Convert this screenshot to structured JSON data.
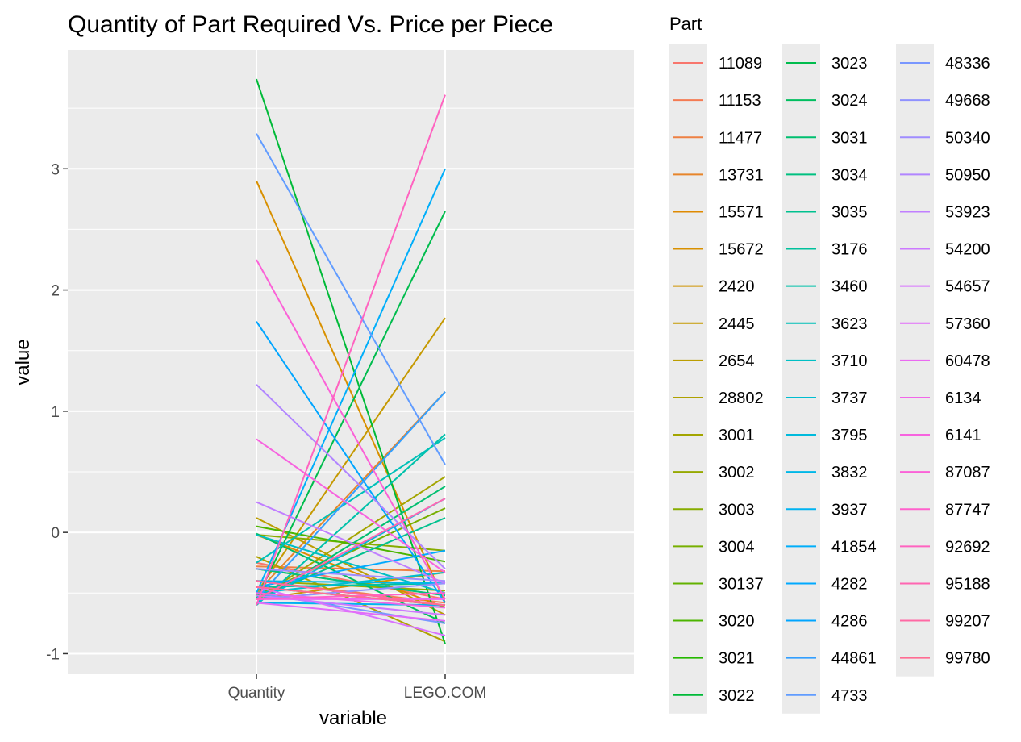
{
  "chart_data": {
    "type": "line",
    "title": "Quantity of Part Required Vs. Price per Piece",
    "xlabel": "variable",
    "ylabel": "value",
    "categories": [
      "Quantity",
      "LEGO.COM"
    ],
    "ylim": [
      -1.17,
      3.98
    ],
    "yticks": [
      -1,
      0,
      1,
      2,
      3
    ],
    "grid": true,
    "legend": {
      "title": "Part",
      "placement": "right"
    },
    "series": [
      {
        "name": "11089",
        "values": [
          -0.25,
          -0.55
        ],
        "color": "#F8766D"
      },
      {
        "name": "11153",
        "values": [
          -0.4,
          -0.58
        ],
        "color": "#F47B53"
      },
      {
        "name": "11477",
        "values": [
          -0.28,
          -0.32
        ],
        "color": "#EE8043"
      },
      {
        "name": "13731",
        "values": [
          -0.5,
          1.16
        ],
        "color": "#E7852A"
      },
      {
        "name": "15571",
        "values": [
          -0.02,
          -0.62
        ],
        "color": "#DF8A00"
      },
      {
        "name": "15672",
        "values": [
          2.9,
          -0.58
        ],
        "color": "#D89000"
      },
      {
        "name": "2420",
        "values": [
          -0.55,
          -0.33
        ],
        "color": "#CF9400"
      },
      {
        "name": "2445",
        "values": [
          -0.5,
          1.77
        ],
        "color": "#C59900"
      },
      {
        "name": "2654",
        "values": [
          0.12,
          -0.68
        ],
        "color": "#BB9D00"
      },
      {
        "name": "28802",
        "values": [
          -0.2,
          -0.9
        ],
        "color": "#AFA100"
      },
      {
        "name": "3001",
        "values": [
          -0.55,
          0.46
        ],
        "color": "#A3A500"
      },
      {
        "name": "3002",
        "values": [
          -0.4,
          -0.48
        ],
        "color": "#96A900"
      },
      {
        "name": "3003",
        "values": [
          -0.02,
          -0.15
        ],
        "color": "#87AC00"
      },
      {
        "name": "3004",
        "values": [
          -0.52,
          0.2
        ],
        "color": "#77AF00"
      },
      {
        "name": "30137",
        "values": [
          -0.3,
          -0.52
        ],
        "color": "#63B200"
      },
      {
        "name": "3020",
        "values": [
          0.05,
          -0.24
        ],
        "color": "#4CB500"
      },
      {
        "name": "3021",
        "values": [
          -0.45,
          -0.6
        ],
        "color": "#25B800"
      },
      {
        "name": "3022",
        "values": [
          3.74,
          -0.92
        ],
        "color": "#00BA38"
      },
      {
        "name": "3023",
        "values": [
          -0.55,
          2.65
        ],
        "color": "#00BC4D"
      },
      {
        "name": "3024",
        "values": [
          -0.01,
          -0.75
        ],
        "color": "#00BE5F"
      },
      {
        "name": "3031",
        "values": [
          -0.58,
          0.38
        ],
        "color": "#00BF70"
      },
      {
        "name": "3034",
        "values": [
          -0.3,
          -0.52
        ],
        "color": "#00C080"
      },
      {
        "name": "3035",
        "values": [
          -0.55,
          0.12
        ],
        "color": "#00C18F"
      },
      {
        "name": "3176",
        "values": [
          -0.45,
          -0.42
        ],
        "color": "#00C19C"
      },
      {
        "name": "3460",
        "values": [
          -0.6,
          0.81
        ],
        "color": "#00C1AA"
      },
      {
        "name": "3623",
        "values": [
          -0.25,
          0.78
        ],
        "color": "#00C0B8"
      },
      {
        "name": "3710",
        "values": [
          -0.02,
          -0.5
        ],
        "color": "#00BFC4"
      },
      {
        "name": "3737",
        "values": [
          -0.5,
          -0.33
        ],
        "color": "#00BDD0"
      },
      {
        "name": "3795",
        "values": [
          -0.58,
          0.28
        ],
        "color": "#00BADC"
      },
      {
        "name": "3832",
        "values": [
          -0.4,
          -0.42
        ],
        "color": "#00B7E7"
      },
      {
        "name": "3937",
        "values": [
          -0.58,
          -0.6
        ],
        "color": "#00B3F1"
      },
      {
        "name": "41854",
        "values": [
          -0.5,
          3.0
        ],
        "color": "#00AEFA"
      },
      {
        "name": "4282",
        "values": [
          -0.45,
          -0.15
        ],
        "color": "#00A9FF"
      },
      {
        "name": "4286",
        "values": [
          1.74,
          -0.58
        ],
        "color": "#00A5FF"
      },
      {
        "name": "44861",
        "values": [
          -0.55,
          1.16
        ],
        "color": "#339FFF"
      },
      {
        "name": "4733",
        "values": [
          3.29,
          0.56
        ],
        "color": "#619CFF"
      },
      {
        "name": "48336",
        "values": [
          -0.5,
          -0.75
        ],
        "color": "#7997FF"
      },
      {
        "name": "49668",
        "values": [
          -0.55,
          -0.42
        ],
        "color": "#8F91FF"
      },
      {
        "name": "50340",
        "values": [
          -0.3,
          -0.4
        ],
        "color": "#A08CFF"
      },
      {
        "name": "50950",
        "values": [
          1.22,
          -0.3
        ],
        "color": "#B185FF"
      },
      {
        "name": "53923",
        "values": [
          0.25,
          -0.42
        ],
        "color": "#C07FFF"
      },
      {
        "name": "54200",
        "values": [
          -0.52,
          -0.68
        ],
        "color": "#CC79FF"
      },
      {
        "name": "54657",
        "values": [
          -0.45,
          -0.85
        ],
        "color": "#D873FF"
      },
      {
        "name": "57360",
        "values": [
          -0.58,
          -0.73
        ],
        "color": "#E26DF9"
      },
      {
        "name": "60478",
        "values": [
          -0.55,
          -0.55
        ],
        "color": "#EA6AF1"
      },
      {
        "name": "6134",
        "values": [
          -0.5,
          -0.62
        ],
        "color": "#F166E8"
      },
      {
        "name": "6141",
        "values": [
          0.77,
          -0.33
        ],
        "color": "#F763DF"
      },
      {
        "name": "87087",
        "values": [
          2.25,
          -0.55
        ],
        "color": "#FB61D7"
      },
      {
        "name": "87747",
        "values": [
          -0.55,
          -0.5
        ],
        "color": "#FF61CC"
      },
      {
        "name": "92692",
        "values": [
          -0.6,
          3.61
        ],
        "color": "#FF63C0"
      },
      {
        "name": "95188",
        "values": [
          -0.55,
          0.28
        ],
        "color": "#FF66B2"
      },
      {
        "name": "99207",
        "values": [
          -0.4,
          -0.6
        ],
        "color": "#FF69A4"
      },
      {
        "name": "99780",
        "values": [
          -0.45,
          -0.6
        ],
        "color": "#FF6C93"
      }
    ]
  }
}
